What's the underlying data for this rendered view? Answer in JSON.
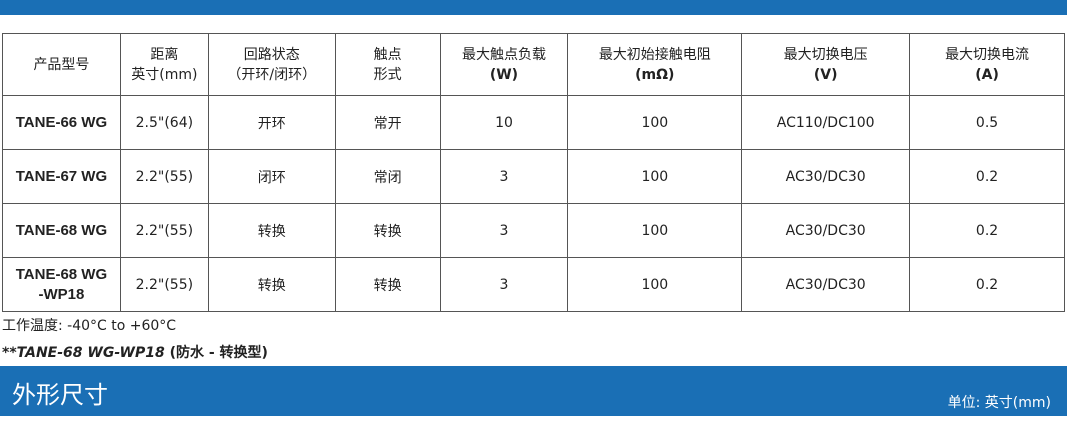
{
  "table": {
    "header": [
      [
        "产品型号"
      ],
      [
        "距离",
        "英寸(mm)"
      ],
      [
        "回路状态",
        "（开环/闭环）"
      ],
      [
        "触点",
        "形式"
      ],
      [
        "最大触点负载",
        "(W)"
      ],
      [
        "最大初始接触电阻",
        "(mΩ)"
      ],
      [
        "最大切换电压",
        "(V)"
      ],
      [
        "最大切换电流",
        "(A)"
      ]
    ],
    "rows": [
      [
        [
          "TANE-66 WG"
        ],
        "2.5\"(64)",
        "开环",
        "常开",
        "10",
        "100",
        "AC110/DC100",
        "0.5"
      ],
      [
        [
          "TANE-67 WG"
        ],
        "2.2\"(55)",
        "闭环",
        "常闭",
        "3",
        "100",
        "AC30/DC30",
        "0.2"
      ],
      [
        [
          "TANE-68 WG"
        ],
        "2.2\"(55)",
        "转换",
        "转换",
        "3",
        "100",
        "AC30/DC30",
        "0.2"
      ],
      [
        [
          "TANE-68 WG",
          "-WP18"
        ],
        "2.2\"(55)",
        "转换",
        "转换",
        "3",
        "100",
        "AC30/DC30",
        "0.2"
      ]
    ]
  },
  "notes": {
    "temperature": "工作温度: -40°C to +60°C",
    "model": "**TANE-68 WG-WP18",
    "model_desc": " (防水 - 转换型)"
  },
  "section": {
    "title": "外形尺寸",
    "unit": "单位: 英寸(mm)"
  }
}
